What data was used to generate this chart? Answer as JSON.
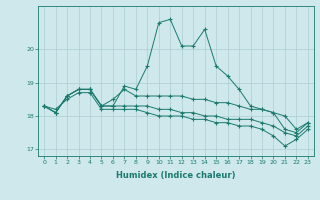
{
  "title": "",
  "xlabel": "Humidex (Indice chaleur)",
  "ylabel": "",
  "background_color": "#cfe8ec",
  "grid_color": "#aacdd4",
  "line_color": "#1a7a6e",
  "x": [
    0,
    1,
    2,
    3,
    4,
    5,
    6,
    7,
    8,
    9,
    10,
    11,
    12,
    13,
    14,
    15,
    16,
    17,
    18,
    19,
    20,
    21,
    22,
    23
  ],
  "series": [
    [
      18.3,
      18.1,
      18.6,
      18.8,
      18.8,
      18.3,
      18.3,
      18.9,
      18.8,
      19.5,
      20.8,
      20.9,
      20.1,
      20.1,
      20.6,
      19.5,
      19.2,
      18.8,
      18.3,
      18.2,
      18.1,
      17.6,
      17.5,
      17.8
    ],
    [
      18.3,
      18.1,
      18.6,
      18.8,
      18.8,
      18.3,
      18.5,
      18.8,
      18.6,
      18.6,
      18.6,
      18.6,
      18.6,
      18.5,
      18.5,
      18.4,
      18.4,
      18.3,
      18.2,
      18.2,
      18.1,
      18.0,
      17.6,
      17.8
    ],
    [
      18.3,
      18.1,
      18.6,
      18.8,
      18.8,
      18.3,
      18.3,
      18.3,
      18.3,
      18.3,
      18.2,
      18.2,
      18.1,
      18.1,
      18.0,
      18.0,
      17.9,
      17.9,
      17.9,
      17.8,
      17.7,
      17.5,
      17.4,
      17.7
    ],
    [
      18.3,
      18.2,
      18.5,
      18.7,
      18.7,
      18.2,
      18.2,
      18.2,
      18.2,
      18.1,
      18.0,
      18.0,
      18.0,
      17.9,
      17.9,
      17.8,
      17.8,
      17.7,
      17.7,
      17.6,
      17.4,
      17.1,
      17.3,
      17.6
    ]
  ],
  "ylim": [
    16.8,
    21.3
  ],
  "yticks": [
    17,
    18,
    19,
    20
  ],
  "xticks": [
    0,
    1,
    2,
    3,
    4,
    5,
    6,
    7,
    8,
    9,
    10,
    11,
    12,
    13,
    14,
    15,
    16,
    17,
    18,
    19,
    20,
    21,
    22,
    23
  ],
  "figsize": [
    3.2,
    2.0
  ],
  "dpi": 100
}
